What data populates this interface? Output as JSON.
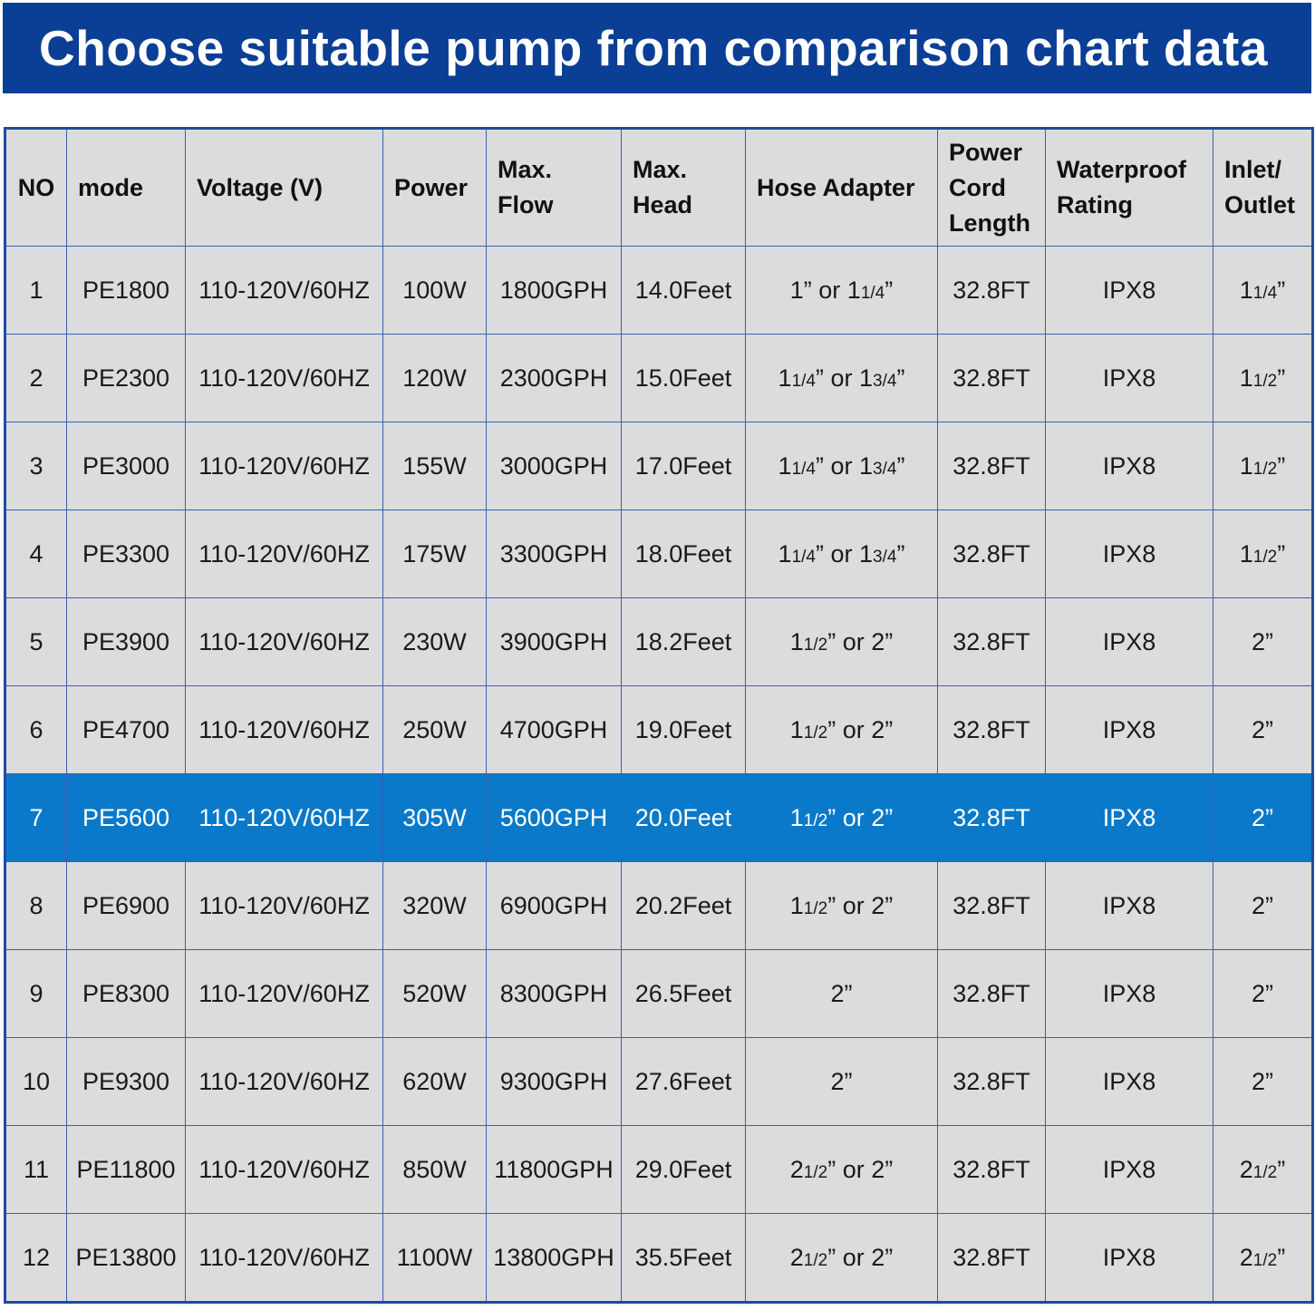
{
  "header": {
    "title": "Choose suitable pump from comparison chart data"
  },
  "table": {
    "columns": [
      "NO",
      "mode",
      "Voltage (V)",
      "Power",
      "Max. Flow",
      "Max. Head",
      "Hose Adapter",
      "Power Cord Length",
      "Waterproof Rating",
      "Inlet/ Outlet"
    ],
    "rows": [
      [
        "1",
        "PE1800",
        "110-120V/60HZ",
        "100W",
        "1800GPH",
        "14.0Feet",
        "1” or 11/4”",
        "32.8FT",
        "IPX8",
        "11/4”"
      ],
      [
        "2",
        "PE2300",
        "110-120V/60HZ",
        "120W",
        "2300GPH",
        "15.0Feet",
        "11/4” or 13/4”",
        "32.8FT",
        "IPX8",
        "11/2”"
      ],
      [
        "3",
        "PE3000",
        "110-120V/60HZ",
        "155W",
        "3000GPH",
        "17.0Feet",
        "11/4” or 13/4”",
        "32.8FT",
        "IPX8",
        "11/2”"
      ],
      [
        "4",
        "PE3300",
        "110-120V/60HZ",
        "175W",
        "3300GPH",
        "18.0Feet",
        "11/4” or 13/4”",
        "32.8FT",
        "IPX8",
        "11/2”"
      ],
      [
        "5",
        "PE3900",
        "110-120V/60HZ",
        "230W",
        "3900GPH",
        "18.2Feet",
        "11/2” or 2”",
        "32.8FT",
        "IPX8",
        "2”"
      ],
      [
        "6",
        "PE4700",
        "110-120V/60HZ",
        "250W",
        "4700GPH",
        "19.0Feet",
        "11/2” or 2”",
        "32.8FT",
        "IPX8",
        "2”"
      ],
      [
        "7",
        "PE5600",
        "110-120V/60HZ",
        "305W",
        "5600GPH",
        "20.0Feet",
        "11/2” or 2”",
        "32.8FT",
        "IPX8",
        "2”"
      ],
      [
        "8",
        "PE6900",
        "110-120V/60HZ",
        "320W",
        "6900GPH",
        "20.2Feet",
        "11/2” or 2”",
        "32.8FT",
        "IPX8",
        "2”"
      ],
      [
        "9",
        "PE8300",
        "110-120V/60HZ",
        "520W",
        "8300GPH",
        "26.5Feet",
        "2”",
        "32.8FT",
        "IPX8",
        "2”"
      ],
      [
        "10",
        "PE9300",
        "110-120V/60HZ",
        "620W",
        "9300GPH",
        "27.6Feet",
        "2”",
        "32.8FT",
        "IPX8",
        "2”"
      ],
      [
        "11",
        "PE11800",
        "110-120V/60HZ",
        "850W",
        "11800GPH",
        "29.0Feet",
        "21/2” or 2”",
        "32.8FT",
        "IPX8",
        "21/2”"
      ],
      [
        "12",
        "PE13800",
        "110-120V/60HZ",
        "1100W",
        "13800GPH",
        "35.5Feet",
        "21/2” or 2”",
        "32.8FT",
        "IPX8",
        "21/2”"
      ]
    ]
  }
}
